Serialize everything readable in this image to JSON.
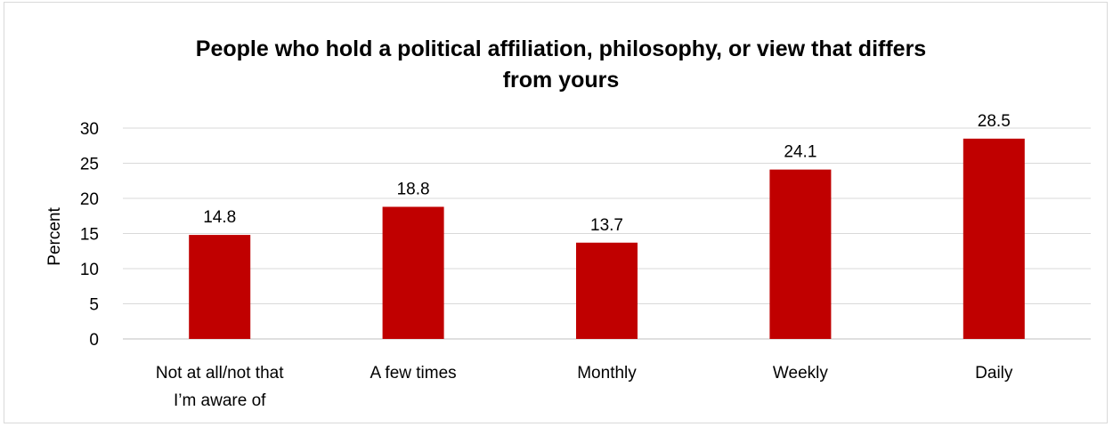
{
  "chart_data": {
    "type": "bar",
    "title": "People who hold a political affiliation, philosophy, or view that differs from yours",
    "title_lines": [
      "People who hold a political affiliation, philosophy, or view that differs",
      "from yours"
    ],
    "ylabel": "Percent",
    "xlabel": "",
    "ylim": [
      0,
      30
    ],
    "yticks": [
      0,
      5,
      10,
      15,
      20,
      25,
      30
    ],
    "grid": true,
    "categories": [
      "Not at all/not that I’m aware of",
      "A few times",
      "Monthly",
      "Weekly",
      "Daily"
    ],
    "category_lines": [
      [
        "Not at all/not that",
        "I’m aware of"
      ],
      [
        "A few times"
      ],
      [
        "Monthly"
      ],
      [
        "Weekly"
      ],
      [
        "Daily"
      ]
    ],
    "values": [
      14.8,
      18.8,
      13.7,
      24.1,
      28.5
    ],
    "value_labels": [
      "14.8",
      "18.8",
      "13.7",
      "24.1",
      "28.5"
    ],
    "bar_color": "#c00000"
  }
}
